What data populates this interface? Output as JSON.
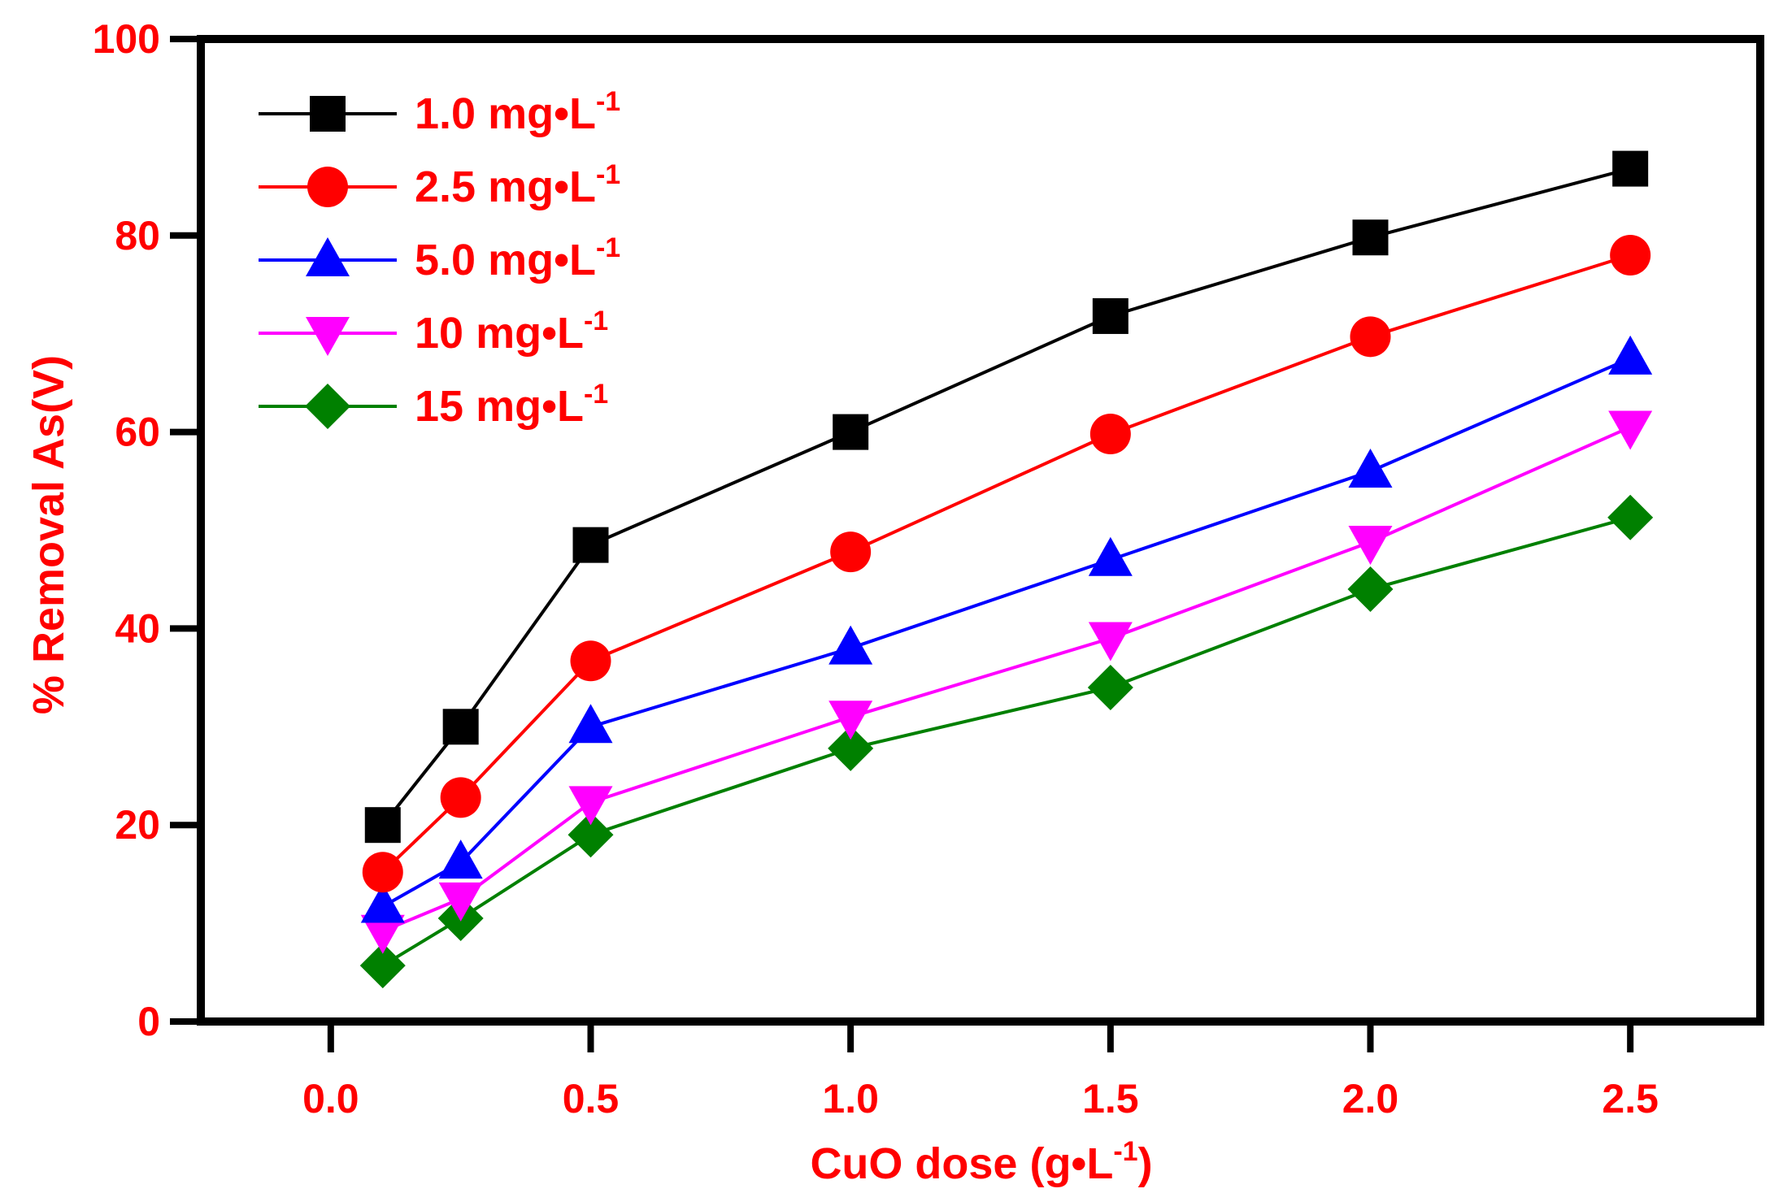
{
  "chart_data": {
    "type": "line",
    "title": "",
    "xlabel": "CuO dose (g•L-1)",
    "xlabel_main": "CuO dose (g•L",
    "xlabel_sup": "-1",
    "xlabel_tail": ")",
    "ylabel": "% Removal As(V)",
    "xlim": [
      -0.25,
      2.75
    ],
    "ylim": [
      0,
      100
    ],
    "x_ticks": [
      0.0,
      0.5,
      1.0,
      1.5,
      2.0,
      2.5
    ],
    "x_tick_labels": [
      "0.0",
      "0.5",
      "1.0",
      "1.5",
      "2.0",
      "2.5"
    ],
    "y_ticks": [
      0,
      20,
      40,
      60,
      80,
      100
    ],
    "y_tick_labels": [
      "0",
      "20",
      "40",
      "60",
      "80",
      "100"
    ],
    "grid": false,
    "legend_position": "top-left",
    "x": [
      0.1,
      0.25,
      0.5,
      1.0,
      1.5,
      2.0,
      2.5
    ],
    "series": [
      {
        "name": "1.0 mg•L-1",
        "label_main": "1.0 mg•L",
        "label_sup": "-1",
        "color": "#000000",
        "marker": "square",
        "values": [
          20,
          30,
          48.5,
          60,
          71.8,
          79.8,
          86.8
        ]
      },
      {
        "name": "2.5 mg•L-1",
        "label_main": "2.5 mg•L",
        "label_sup": "-1",
        "color": "#ff0000",
        "marker": "circle",
        "values": [
          15.2,
          22.8,
          36.7,
          47.8,
          59.8,
          69.7,
          78
        ]
      },
      {
        "name": "5.0 mg•L-1",
        "label_main": "5.0 mg•L",
        "label_sup": "-1",
        "color": "#0000ff",
        "marker": "triangle-up",
        "values": [
          11.7,
          16.2,
          30,
          38,
          47,
          56,
          67.5
        ]
      },
      {
        "name": "10 mg•L-1",
        "label_main": " 10 mg•L",
        "label_sup": "-1",
        "color": "#ff00ff",
        "marker": "triangle-down",
        "values": [
          9.2,
          12.5,
          22.3,
          31,
          39,
          48.8,
          60.5
        ]
      },
      {
        "name": "15 mg•L-1",
        "label_main": " 15 mg•L",
        "label_sup": "-1",
        "color": "#008000",
        "marker": "diamond",
        "values": [
          5.7,
          10.5,
          19,
          27.8,
          34,
          44,
          51.3
        ]
      }
    ]
  }
}
